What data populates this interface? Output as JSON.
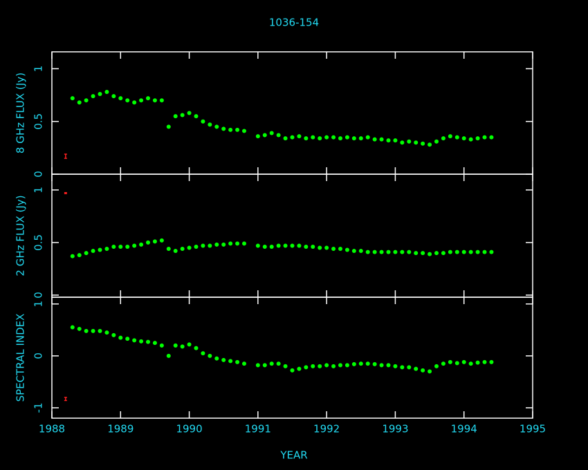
{
  "chart_data": [
    {
      "type": "scatter",
      "title": "1036-154",
      "ylabel": "8 GHz FLUX (Jy)",
      "color": "#00ff00",
      "xlim": [
        1988,
        1995
      ],
      "ylim": [
        0,
        1.16
      ],
      "yticks": [
        0,
        0.5,
        1
      ],
      "x": [
        1988.3,
        1988.4,
        1988.5,
        1988.6,
        1988.7,
        1988.8,
        1988.9,
        1989.0,
        1989.1,
        1989.2,
        1989.3,
        1989.4,
        1989.5,
        1989.6,
        1989.7,
        1989.8,
        1989.9,
        1990.0,
        1990.1,
        1990.2,
        1990.3,
        1990.4,
        1990.5,
        1990.6,
        1990.7,
        1990.8,
        1991.0,
        1991.1,
        1991.2,
        1991.3,
        1991.4,
        1991.5,
        1991.6,
        1991.7,
        1991.8,
        1991.9,
        1992.0,
        1992.1,
        1992.2,
        1992.3,
        1992.4,
        1992.5,
        1992.6,
        1992.7,
        1992.8,
        1992.9,
        1993.0,
        1993.1,
        1993.2,
        1993.3,
        1993.4,
        1993.5,
        1993.6,
        1993.7,
        1993.8,
        1993.9,
        1994.0,
        1994.1,
        1994.2,
        1994.3,
        1994.4
      ],
      "values": [
        0.72,
        0.68,
        0.7,
        0.74,
        0.76,
        0.78,
        0.74,
        0.72,
        0.7,
        0.68,
        0.7,
        0.72,
        0.7,
        0.7,
        0.45,
        0.55,
        0.56,
        0.58,
        0.55,
        0.5,
        0.47,
        0.45,
        0.43,
        0.42,
        0.42,
        0.41,
        0.36,
        0.37,
        0.39,
        0.37,
        0.34,
        0.35,
        0.36,
        0.34,
        0.35,
        0.34,
        0.35,
        0.35,
        0.34,
        0.35,
        0.34,
        0.34,
        0.35,
        0.33,
        0.33,
        0.32,
        0.32,
        0.3,
        0.31,
        0.3,
        0.29,
        0.28,
        0.31,
        0.34,
        0.36,
        0.35,
        0.34,
        0.33,
        0.34,
        0.35,
        0.35
      ],
      "error_bar": {
        "x": 1988.2,
        "y": 0.17,
        "error": 0.02,
        "color": "#ff2020"
      }
    },
    {
      "type": "scatter",
      "ylabel": "2 GHz FLUX (Jy)",
      "color": "#00ff00",
      "xlim": [
        1988,
        1995
      ],
      "ylim": [
        -0.02,
        1.15
      ],
      "yticks": [
        0,
        0.5,
        1
      ],
      "x": [
        1988.3,
        1988.4,
        1988.5,
        1988.6,
        1988.7,
        1988.8,
        1988.9,
        1989.0,
        1989.1,
        1989.2,
        1989.3,
        1989.4,
        1989.5,
        1989.6,
        1989.7,
        1989.8,
        1989.9,
        1990.0,
        1990.1,
        1990.2,
        1990.3,
        1990.4,
        1990.5,
        1990.6,
        1990.7,
        1990.8,
        1991.0,
        1991.1,
        1991.2,
        1991.3,
        1991.4,
        1991.5,
        1991.6,
        1991.7,
        1991.8,
        1991.9,
        1992.0,
        1992.1,
        1992.2,
        1992.3,
        1992.4,
        1992.5,
        1992.6,
        1992.7,
        1992.8,
        1992.9,
        1993.0,
        1993.1,
        1993.2,
        1993.3,
        1993.4,
        1993.5,
        1993.6,
        1993.7,
        1993.8,
        1993.9,
        1994.0,
        1994.1,
        1994.2,
        1994.3,
        1994.4
      ],
      "values": [
        0.37,
        0.38,
        0.4,
        0.42,
        0.43,
        0.44,
        0.46,
        0.46,
        0.46,
        0.47,
        0.48,
        0.5,
        0.51,
        0.52,
        0.44,
        0.42,
        0.44,
        0.45,
        0.46,
        0.47,
        0.47,
        0.48,
        0.48,
        0.49,
        0.49,
        0.49,
        0.47,
        0.46,
        0.46,
        0.47,
        0.47,
        0.47,
        0.47,
        0.46,
        0.46,
        0.45,
        0.45,
        0.44,
        0.44,
        0.43,
        0.42,
        0.42,
        0.41,
        0.41,
        0.41,
        0.41,
        0.41,
        0.41,
        0.41,
        0.4,
        0.4,
        0.39,
        0.4,
        0.4,
        0.41,
        0.41,
        0.41,
        0.41,
        0.41,
        0.41,
        0.41
      ],
      "error_bar": {
        "x": 1988.2,
        "y": 0.97,
        "error": 0.005,
        "color": "#ff2020"
      }
    },
    {
      "type": "scatter",
      "ylabel": "SPECTRAL INDEX",
      "xlabel": "YEAR",
      "color": "#00ff00",
      "xlim": [
        1988,
        1995
      ],
      "ylim": [
        -1.2,
        1.13
      ],
      "yticks": [
        -1,
        0,
        1
      ],
      "xticks": [
        1988,
        1989,
        1990,
        1991,
        1992,
        1993,
        1994,
        1995
      ],
      "x": [
        1988.3,
        1988.4,
        1988.5,
        1988.6,
        1988.7,
        1988.8,
        1988.9,
        1989.0,
        1989.1,
        1989.2,
        1989.3,
        1989.4,
        1989.5,
        1989.6,
        1989.7,
        1989.8,
        1989.9,
        1990.0,
        1990.1,
        1990.2,
        1990.3,
        1990.4,
        1990.5,
        1990.6,
        1990.7,
        1990.8,
        1991.0,
        1991.1,
        1991.2,
        1991.3,
        1991.4,
        1991.5,
        1991.6,
        1991.7,
        1991.8,
        1991.9,
        1992.0,
        1992.1,
        1992.2,
        1992.3,
        1992.4,
        1992.5,
        1992.6,
        1992.7,
        1992.8,
        1992.9,
        1993.0,
        1993.1,
        1993.2,
        1993.3,
        1993.4,
        1993.5,
        1993.6,
        1993.7,
        1993.8,
        1993.9,
        1994.0,
        1994.1,
        1994.2,
        1994.3,
        1994.4
      ],
      "values": [
        0.55,
        0.52,
        0.48,
        0.48,
        0.48,
        0.45,
        0.4,
        0.35,
        0.33,
        0.3,
        0.28,
        0.27,
        0.25,
        0.2,
        0.0,
        0.2,
        0.18,
        0.22,
        0.15,
        0.05,
        0.0,
        -0.05,
        -0.08,
        -0.1,
        -0.12,
        -0.15,
        -0.18,
        -0.18,
        -0.15,
        -0.15,
        -0.2,
        -0.28,
        -0.25,
        -0.22,
        -0.2,
        -0.2,
        -0.18,
        -0.2,
        -0.18,
        -0.18,
        -0.16,
        -0.15,
        -0.15,
        -0.16,
        -0.18,
        -0.18,
        -0.2,
        -0.22,
        -0.22,
        -0.25,
        -0.28,
        -0.3,
        -0.2,
        -0.15,
        -0.12,
        -0.14,
        -0.12,
        -0.15,
        -0.13,
        -0.12,
        -0.12
      ],
      "error_bar": {
        "x": 1988.2,
        "y": -0.83,
        "error": 0.03,
        "color": "#ff2020"
      }
    }
  ]
}
